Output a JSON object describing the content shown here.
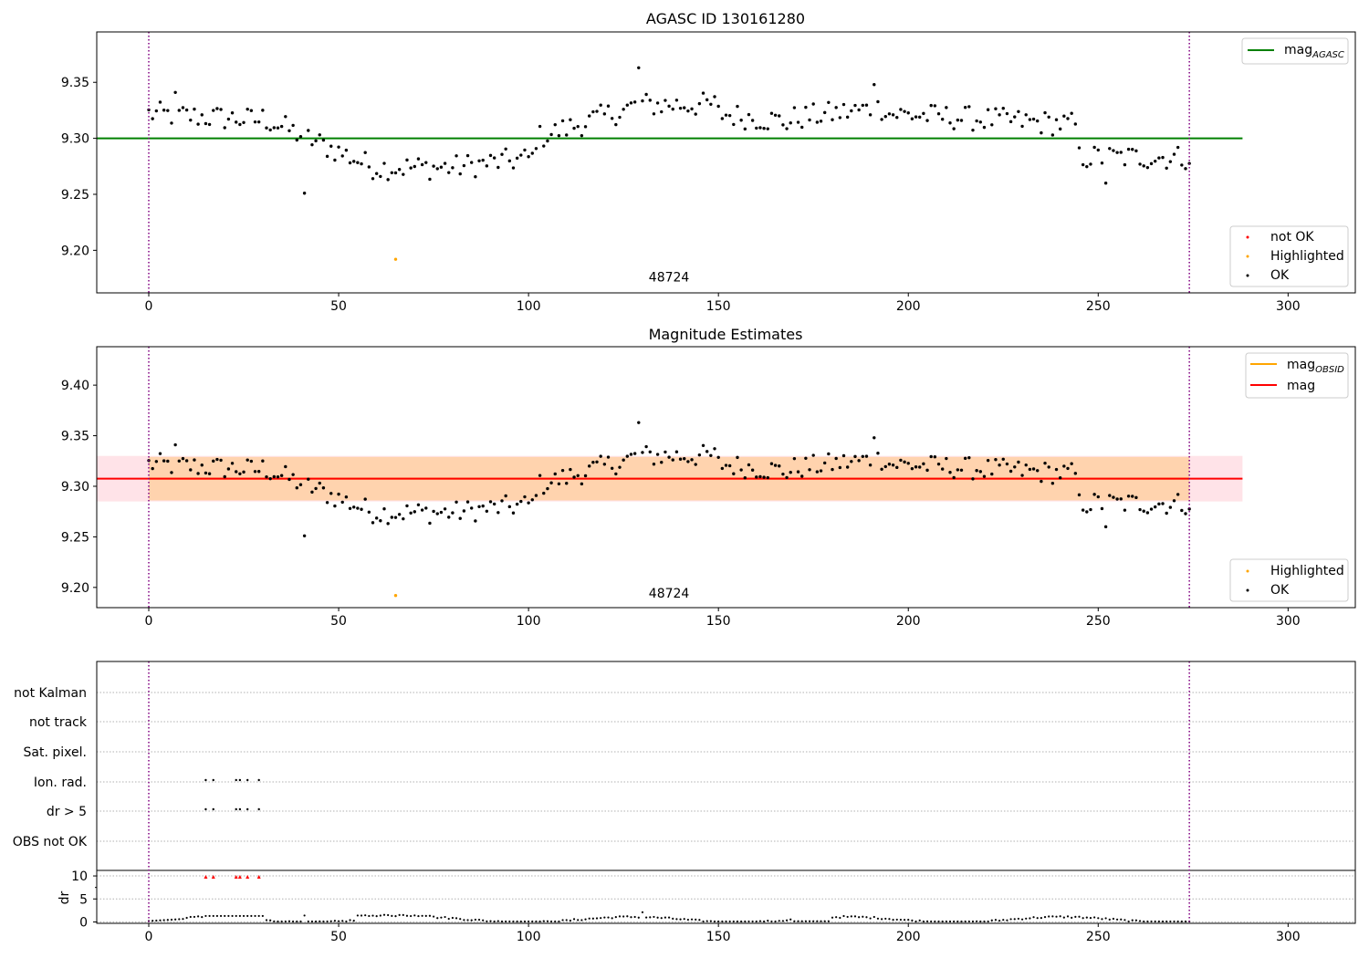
{
  "chart_data": [
    {
      "type": "scatter",
      "title": "AGASC ID 130161280",
      "xlim": [
        -13.7,
        317.7
      ],
      "ylim": [
        9.162,
        9.395
      ],
      "xticks": [
        0,
        50,
        100,
        150,
        200,
        250,
        300
      ],
      "yticks": [
        9.2,
        9.25,
        9.3,
        9.35
      ],
      "ytick_labels": [
        "9.20",
        "9.25",
        "9.30",
        "9.35"
      ],
      "obs_boundaries": [
        0,
        274
      ],
      "hlines": [
        {
          "name": "mag_AGASC",
          "label_main": "mag",
          "label_sub": "AGASC",
          "y": 9.3,
          "x_range": [
            -13.7,
            288
          ],
          "color": "#008000"
        }
      ],
      "series": [
        {
          "name": "not OK",
          "color": "#ff0000",
          "points": []
        },
        {
          "name": "Highlighted",
          "color": "#ffa500",
          "points": [
            [
              65,
              9.192
            ]
          ]
        },
        {
          "name": "OK",
          "color": "#000000",
          "curve": "main"
        }
      ],
      "annotations": [
        {
          "text": "48724",
          "x": 137,
          "y": 9.172
        }
      ],
      "legend_lines_position": "upper right",
      "legend_points_position": "lower right"
    },
    {
      "type": "scatter",
      "title": "Magnitude Estimates",
      "xlim": [
        -13.7,
        317.7
      ],
      "ylim": [
        9.18,
        9.438
      ],
      "xticks": [
        0,
        50,
        100,
        150,
        200,
        250,
        300
      ],
      "yticks": [
        9.2,
        9.25,
        9.3,
        9.35,
        9.4
      ],
      "ytick_labels": [
        "9.20",
        "9.25",
        "9.30",
        "9.35",
        "9.40"
      ],
      "obs_boundaries": [
        0,
        274
      ],
      "bands": [
        {
          "y0": 9.285,
          "y1": 9.33,
          "x_range": [
            -13.7,
            288
          ],
          "color": "#ffc0cb",
          "opacity": 0.45
        },
        {
          "y0": 9.286,
          "y1": 9.329,
          "x_range": [
            0,
            274
          ],
          "color": "#ffa500",
          "opacity": 0.25
        }
      ],
      "hlines": [
        {
          "name": "mag_OBSID",
          "label_main": "mag",
          "label_sub": "OBSID",
          "y": 9.3075,
          "x_range": [
            0,
            274
          ],
          "color": "#ffa500"
        },
        {
          "name": "mag",
          "label_main": "mag",
          "label_sub": "",
          "y": 9.3075,
          "x_range": [
            -13.7,
            288
          ],
          "color": "#ff0000"
        }
      ],
      "series": [
        {
          "name": "Highlighted",
          "color": "#ffa500",
          "points": [
            [
              65,
              9.192
            ]
          ]
        },
        {
          "name": "OK",
          "color": "#000000",
          "curve": "main"
        }
      ],
      "annotations": [
        {
          "text": "48724",
          "x": 137,
          "y": 9.19
        }
      ],
      "legend_lines_position": "upper right",
      "legend_points_position": "lower right"
    },
    {
      "type": "scatter",
      "title": "",
      "xlim": [
        -13.7,
        317.7
      ],
      "xticks": [
        0,
        50,
        100,
        150,
        200,
        250,
        300
      ],
      "obs_boundaries": [
        0,
        274
      ],
      "flag_rows": [
        "not Kalman",
        "not track",
        "Sat. pixel.",
        "Ion. rad.",
        "dr > 5",
        "OBS not OK"
      ],
      "flag_points": {
        "Ion. rad.": [
          15,
          17,
          23,
          24,
          26,
          29
        ],
        "dr > 5": [
          15,
          17,
          23,
          24,
          26,
          29
        ]
      },
      "dr_panel": {
        "ylabel": "dr",
        "ylim": [
          -0.3,
          11.2
        ],
        "yticks": [
          0,
          5,
          10
        ],
        "red_points": [
          [
            15,
            9.8
          ],
          [
            17,
            9.8
          ],
          [
            23,
            9.8
          ],
          [
            24,
            9.8
          ],
          [
            26,
            9.8
          ],
          [
            29,
            9.8
          ]
        ],
        "dr_curve": "computed per observation index",
        "spikes": [
          [
            41,
            1.4
          ],
          [
            130,
            2.1
          ]
        ]
      }
    }
  ]
}
